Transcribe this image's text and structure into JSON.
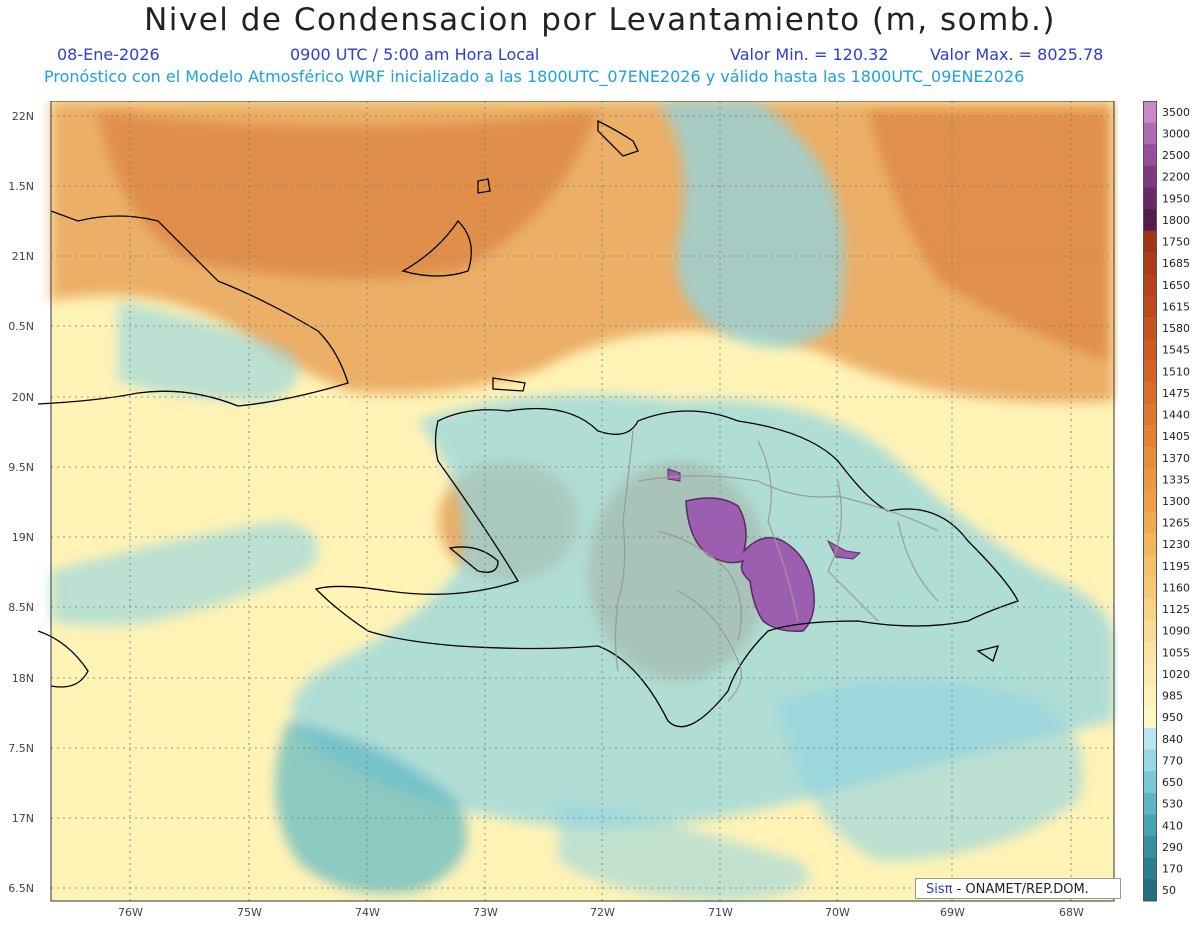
{
  "title": "Nivel de Condensacion por Levantamiento (m, somb.)",
  "date": "08-Ene-2026",
  "time": "0900 UTC / 5:00 am Hora Local",
  "min_label": "Valor Min. = 120.32",
  "max_label": "Valor Max. = 8025.78",
  "model_line": "Pronóstico con el Modelo Atmosférico WRF inicializado a las 1800UTC_07ENE2026 y válido hasta las  1800UTC_09ENE2026",
  "lat_labels": [
    "22N",
    "1.5N",
    "21N",
    "0.5N",
    "20N",
    "9.5N",
    "19N",
    "8.5N",
    "18N",
    "7.5N",
    "17N",
    "6.5N"
  ],
  "lon_labels": [
    "76W",
    "75W",
    "74W",
    "73W",
    "72W",
    "71W",
    "70W",
    "69W",
    "68W"
  ],
  "legend_values": [
    "3500",
    "3000",
    "2500",
    "2200",
    "1950",
    "1800",
    "1750",
    "1685",
    "1650",
    "1615",
    "1580",
    "1545",
    "1510",
    "1475",
    "1440",
    "1405",
    "1370",
    "1335",
    "1300",
    "1265",
    "1230",
    "1195",
    "1160",
    "1125",
    "1090",
    "1055",
    "1020",
    "985",
    "950",
    "840",
    "770",
    "650",
    "530",
    "410",
    "290",
    "170",
    "50"
  ],
  "legend_colors": [
    "#c889c9",
    "#b06bb5",
    "#964f9c",
    "#7d3a81",
    "#672a66",
    "#561c4e",
    "#a13416",
    "#ab3c17",
    "#b5441a",
    "#bd4c1c",
    "#c5541f",
    "#cc5c22",
    "#d26526",
    "#d86e2a",
    "#dd782e",
    "#e28333",
    "#e68e39",
    "#ea993f",
    "#ee9f46",
    "#f0ab51",
    "#f3b65d",
    "#f5c06a",
    "#f7c977",
    "#f8d285",
    "#fadb93",
    "#fbe3a1",
    "#fdebae",
    "#fef2ba",
    "#fff8c4",
    "#b8e6ee",
    "#98d9e6",
    "#78c8d6",
    "#5cb6c5",
    "#47a3b4",
    "#3790a2",
    "#2a7e90",
    "#206e80"
  ],
  "map_colors": {
    "ocean": "#fff3b6",
    "orange": "#e79a52",
    "cyan": "#8fd4e2",
    "purple": "#9c5fb0",
    "coast": "#000000",
    "border": "#9a9a9a"
  },
  "credit": {
    "sis": "Sisπ",
    "rest": " - ONAMET/REP.DOM."
  }
}
